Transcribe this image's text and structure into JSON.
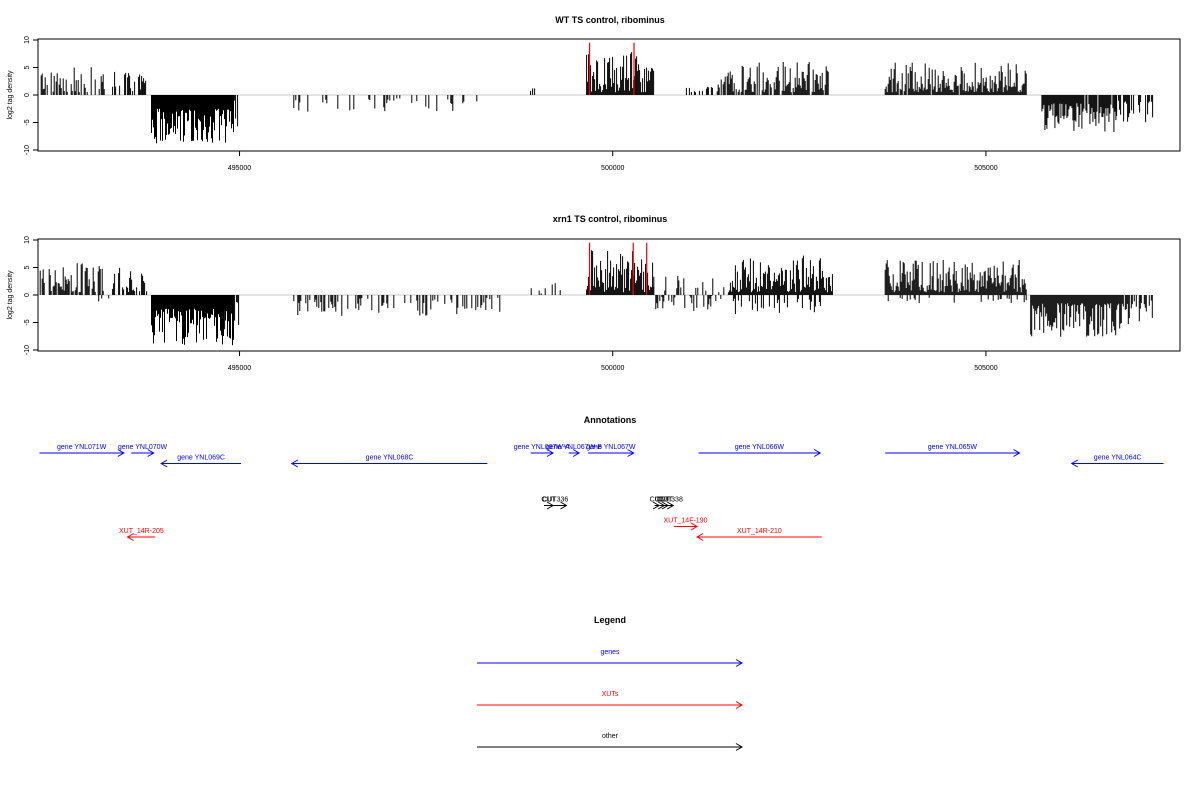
{
  "chart_data": [
    {
      "type": "bar",
      "title": "WT TS control, ribominus",
      "ylabel": "log2 tag density",
      "xlabel": "",
      "ylim": [
        -10,
        10
      ],
      "yticks": [
        "-10",
        "-5",
        "0",
        "5",
        "10"
      ],
      "xlim": [
        492300,
        507600
      ],
      "xticks": [
        {
          "value": 495000,
          "label": "495000"
        },
        {
          "value": 500000,
          "label": "500000"
        },
        {
          "value": 505000,
          "label": "505000"
        }
      ],
      "series": [
        {
          "color": "#000000",
          "regions": [
            {
              "x0": 492330,
              "x1": 493200,
              "min": 0.5,
              "max": 5.2,
              "density": 0.55
            },
            {
              "x0": 493300,
              "x1": 493780,
              "min": 0.5,
              "max": 4.3,
              "density": 0.5
            },
            {
              "x0": 493820,
              "x1": 494920,
              "min": -8.8,
              "max": -2.5,
              "density": 1.0
            },
            {
              "x0": 494760,
              "x1": 495000,
              "min": -6.3,
              "max": -1.0,
              "density": 0.4
            },
            {
              "x0": 495700,
              "x1": 498200,
              "min": -3.2,
              "max": -0.5,
              "density": 0.18
            },
            {
              "x0": 498900,
              "x1": 499000,
              "min": 0.3,
              "max": 1.3,
              "density": 0.2
            },
            {
              "x0": 499650,
              "x1": 500550,
              "min": 0.5,
              "max": 7.8,
              "density": 1.0
            },
            {
              "x0": 500960,
              "x1": 501350,
              "min": 0.5,
              "max": 3.2,
              "density": 0.45
            },
            {
              "x0": 501400,
              "x1": 502900,
              "min": 0.5,
              "max": 6.1,
              "density": 0.8
            },
            {
              "x0": 503650,
              "x1": 505550,
              "min": 0.5,
              "max": 5.9,
              "density": 0.95
            },
            {
              "x0": 505750,
              "x1": 506750,
              "min": -6.8,
              "max": -1.5,
              "density": 0.95
            },
            {
              "x0": 506750,
              "x1": 507250,
              "min": -5.3,
              "max": -1.0,
              "density": 0.6
            }
          ]
        },
        {
          "color": "#ff0000",
          "spikes": [
            {
              "x": 499690,
              "y": 9.5
            },
            {
              "x": 500285,
              "y": 9.5
            }
          ]
        }
      ]
    },
    {
      "type": "bar",
      "title": "xrn1 TS control, ribominus",
      "ylabel": "log2 tag density",
      "xlabel": "",
      "ylim": [
        -10,
        10
      ],
      "yticks": [
        "-10",
        "-5",
        "0",
        "5",
        "10"
      ],
      "xlim": [
        492300,
        507600
      ],
      "xticks": [
        {
          "value": 495000,
          "label": "495000"
        },
        {
          "value": 500000,
          "label": "500000"
        },
        {
          "value": 505000,
          "label": "505000"
        }
      ],
      "series": [
        {
          "color": "#000000",
          "regions": [
            {
              "x0": 492330,
              "x1": 493200,
              "min": 0.5,
              "max": 5.8,
              "density": 0.75
            },
            {
              "x0": 493100,
              "x1": 493250,
              "min": -2.8,
              "max": -0.5,
              "density": 0.3
            },
            {
              "x0": 493300,
              "x1": 493780,
              "min": 0.5,
              "max": 5.5,
              "density": 0.7
            },
            {
              "x0": 493820,
              "x1": 494920,
              "min": -9.3,
              "max": -2.5,
              "density": 1.0
            },
            {
              "x0": 494760,
              "x1": 495000,
              "min": -7.2,
              "max": -1.0,
              "density": 0.5
            },
            {
              "x0": 495700,
              "x1": 498500,
              "min": -3.8,
              "max": -0.5,
              "density": 0.35
            },
            {
              "x0": 498800,
              "x1": 499400,
              "min": 0.3,
              "max": 2.2,
              "density": 0.2
            },
            {
              "x0": 499650,
              "x1": 500550,
              "min": 0.5,
              "max": 8.2,
              "density": 1.0
            },
            {
              "x0": 500550,
              "x1": 501500,
              "min": -3.0,
              "max": 3.5,
              "density": 0.5
            },
            {
              "x0": 501550,
              "x1": 502950,
              "min": 0.5,
              "max": 7.2,
              "density": 1.0
            },
            {
              "x0": 501550,
              "x1": 502950,
              "min": -3.5,
              "max": -0.5,
              "density": 0.3
            },
            {
              "x0": 503650,
              "x1": 505550,
              "min": 0.5,
              "max": 6.5,
              "density": 1.0
            },
            {
              "x0": 503650,
              "x1": 505550,
              "min": -1.5,
              "max": -0.5,
              "density": 0.15
            },
            {
              "x0": 505600,
              "x1": 506800,
              "min": -7.6,
              "max": -1.5,
              "density": 1.0
            },
            {
              "x0": 506800,
              "x1": 507250,
              "min": -6.0,
              "max": -1.0,
              "density": 0.7
            }
          ]
        },
        {
          "color": "#ff0000",
          "spikes": [
            {
              "x": 499690,
              "y": 9.5
            },
            {
              "x": 500275,
              "y": 9.5
            },
            {
              "x": 500455,
              "y": 9.5
            }
          ]
        }
      ]
    }
  ],
  "annotations": {
    "title": "Annotations",
    "color_genes": "#0000ff",
    "color_xuts": "#ff0000",
    "color_other": "#000000",
    "features": [
      {
        "label": "gene YNL071W",
        "x0": 492320,
        "x1": 493450,
        "strand": "+",
        "kind": "gene",
        "row": 0
      },
      {
        "label": "gene YNL070W",
        "x0": 493550,
        "x1": 493850,
        "strand": "+",
        "kind": "gene",
        "row": 0
      },
      {
        "label": "gene YNL069C",
        "x0": 493950,
        "x1": 495020,
        "strand": "-",
        "kind": "gene",
        "row": 1
      },
      {
        "label": "gene YNL068C",
        "x0": 495700,
        "x1": 498320,
        "strand": "-",
        "kind": "gene",
        "row": 1
      },
      {
        "label": "gene YNL067W-A",
        "x0": 498900,
        "x1": 499200,
        "strand": "+",
        "kind": "gene",
        "row": 0
      },
      {
        "label": "gene YNL067W-B",
        "x0": 499410,
        "x1": 499550,
        "strand": "+",
        "kind": "gene",
        "row": 0
      },
      {
        "label": "gene YNL067W",
        "x0": 499670,
        "x1": 500280,
        "strand": "+",
        "kind": "gene",
        "row": 0
      },
      {
        "label": "gene YNL066W",
        "x0": 501150,
        "x1": 502780,
        "strand": "+",
        "kind": "gene",
        "row": 0
      },
      {
        "label": "gene YNL065W",
        "x0": 503650,
        "x1": 505450,
        "strand": "+",
        "kind": "gene",
        "row": 0
      },
      {
        "label": "gene YNL064C",
        "x0": 506150,
        "x1": 507380,
        "strand": "-",
        "kind": "gene",
        "row": 1
      },
      {
        "label": "CUT",
        "x0": 499080,
        "x1": 499200,
        "strand": "+",
        "kind": "other",
        "row": 5
      },
      {
        "label": "CUT336",
        "x0": 499080,
        "x1": 499380,
        "strand": "+",
        "kind": "other",
        "row": 5
      },
      {
        "label": "CUT",
        "x0": 500560,
        "x1": 500620,
        "strand": "+",
        "kind": "other",
        "row": 5
      },
      {
        "label": "CUT",
        "x0": 500630,
        "x1": 500690,
        "strand": "+",
        "kind": "other",
        "row": 5
      },
      {
        "label": "CUT",
        "x0": 500680,
        "x1": 500740,
        "strand": "+",
        "kind": "other",
        "row": 5
      },
      {
        "label": "CUT338",
        "x0": 500720,
        "x1": 500810,
        "strand": "+",
        "kind": "other",
        "row": 5
      },
      {
        "label": "XUT_14F-190",
        "x0": 500820,
        "x1": 501130,
        "strand": "+",
        "kind": "xut",
        "row": 7
      },
      {
        "label": "XUT_14R-205",
        "x0": 493500,
        "x1": 493870,
        "strand": "-",
        "kind": "xut",
        "row": 8
      },
      {
        "label": "XUT_14R-210",
        "x0": 501130,
        "x1": 502800,
        "strand": "-",
        "kind": "xut",
        "row": 8
      }
    ]
  },
  "legend": {
    "title": "Legend",
    "items": [
      {
        "label": "genes",
        "color": "#0000ff"
      },
      {
        "label": "XUTs",
        "color": "#ff0000"
      },
      {
        "label": "other",
        "color": "#000000"
      }
    ]
  }
}
